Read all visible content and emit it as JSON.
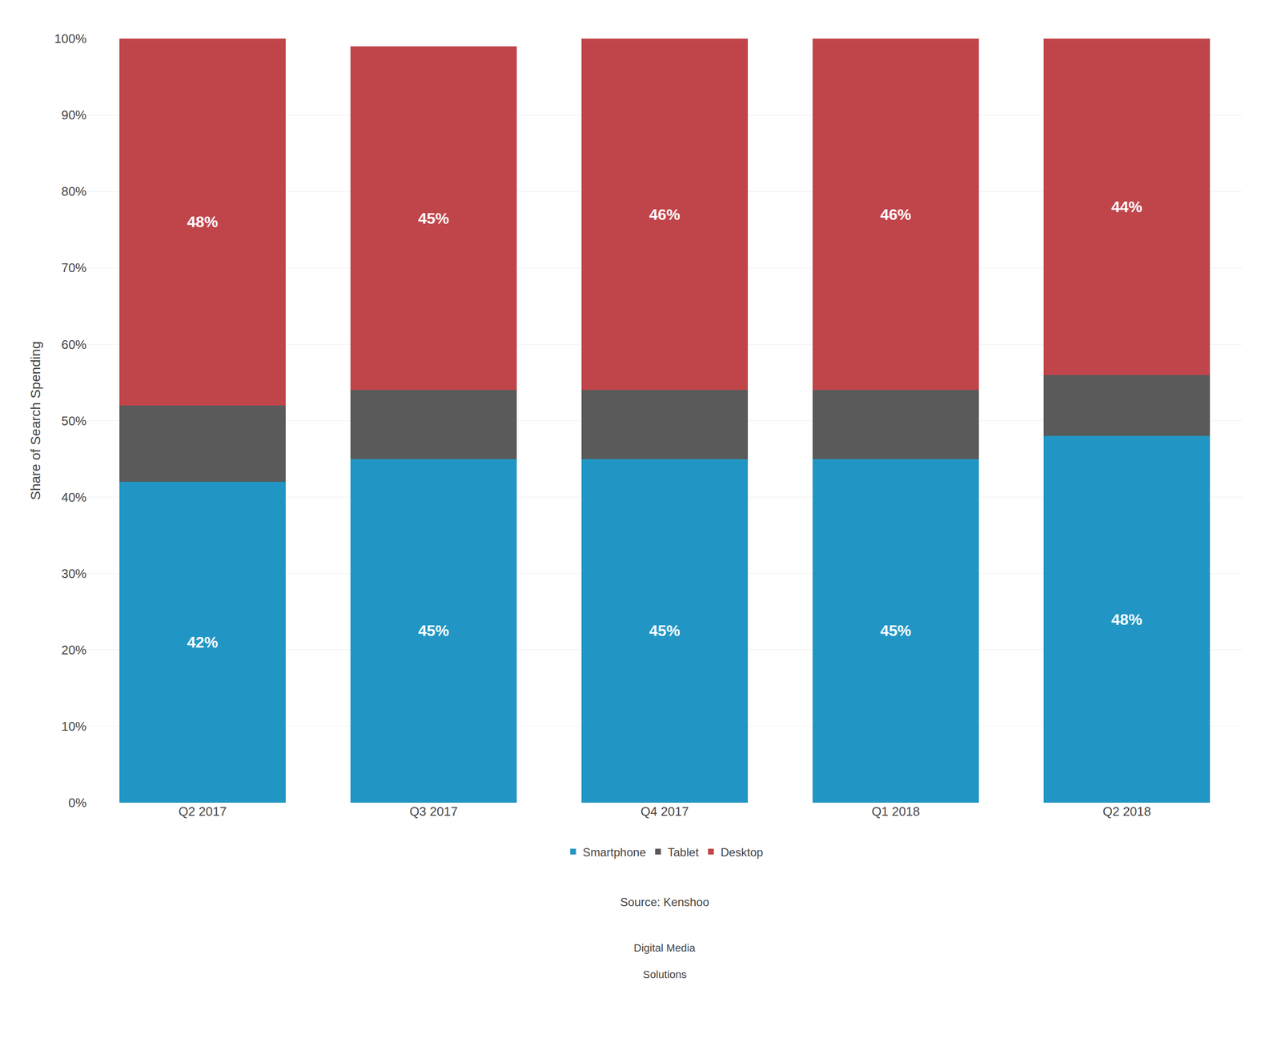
{
  "chart_data": {
    "type": "bar",
    "stacked": true,
    "categories": [
      "Q2 2017",
      "Q3 2017",
      "Q4 2017",
      "Q1 2018",
      "Q2 2018"
    ],
    "series": [
      {
        "name": "Smartphone",
        "color": "#2196C4",
        "values": [
          42,
          45,
          45,
          45,
          48
        ],
        "data_labels": true,
        "value_labels": [
          "42%",
          "45%",
          "45%",
          "45%",
          "48%"
        ]
      },
      {
        "name": "Tablet",
        "color": "#5a5a5a",
        "values": [
          10,
          9,
          9,
          9,
          8
        ]
      },
      {
        "name": "Desktop",
        "color": "#C0454A",
        "values": [
          48,
          45,
          46,
          46,
          44
        ],
        "data_labels": true,
        "value_labels": [
          "48%",
          "45%",
          "46%",
          "46%",
          "44%"
        ]
      }
    ],
    "ylabel": "Share of Search Spending",
    "ylim": [
      0,
      100
    ],
    "yticks": [
      {
        "value": 0,
        "label": "0%"
      },
      {
        "value": 10,
        "label": "10%"
      },
      {
        "value": 20,
        "label": "20%"
      },
      {
        "value": 30,
        "label": "30%"
      },
      {
        "value": 40,
        "label": "40%"
      },
      {
        "value": 50,
        "label": "50%"
      },
      {
        "value": 60,
        "label": "60%"
      },
      {
        "value": 70,
        "label": "70%"
      },
      {
        "value": 80,
        "label": "80%"
      },
      {
        "value": 90,
        "label": "90%"
      },
      {
        "value": 100,
        "label": "100%"
      }
    ],
    "grid": true,
    "legend": "bottom",
    "annotations": [
      "Source: Kenshoo",
      "Digital Media",
      "Solutions"
    ]
  }
}
